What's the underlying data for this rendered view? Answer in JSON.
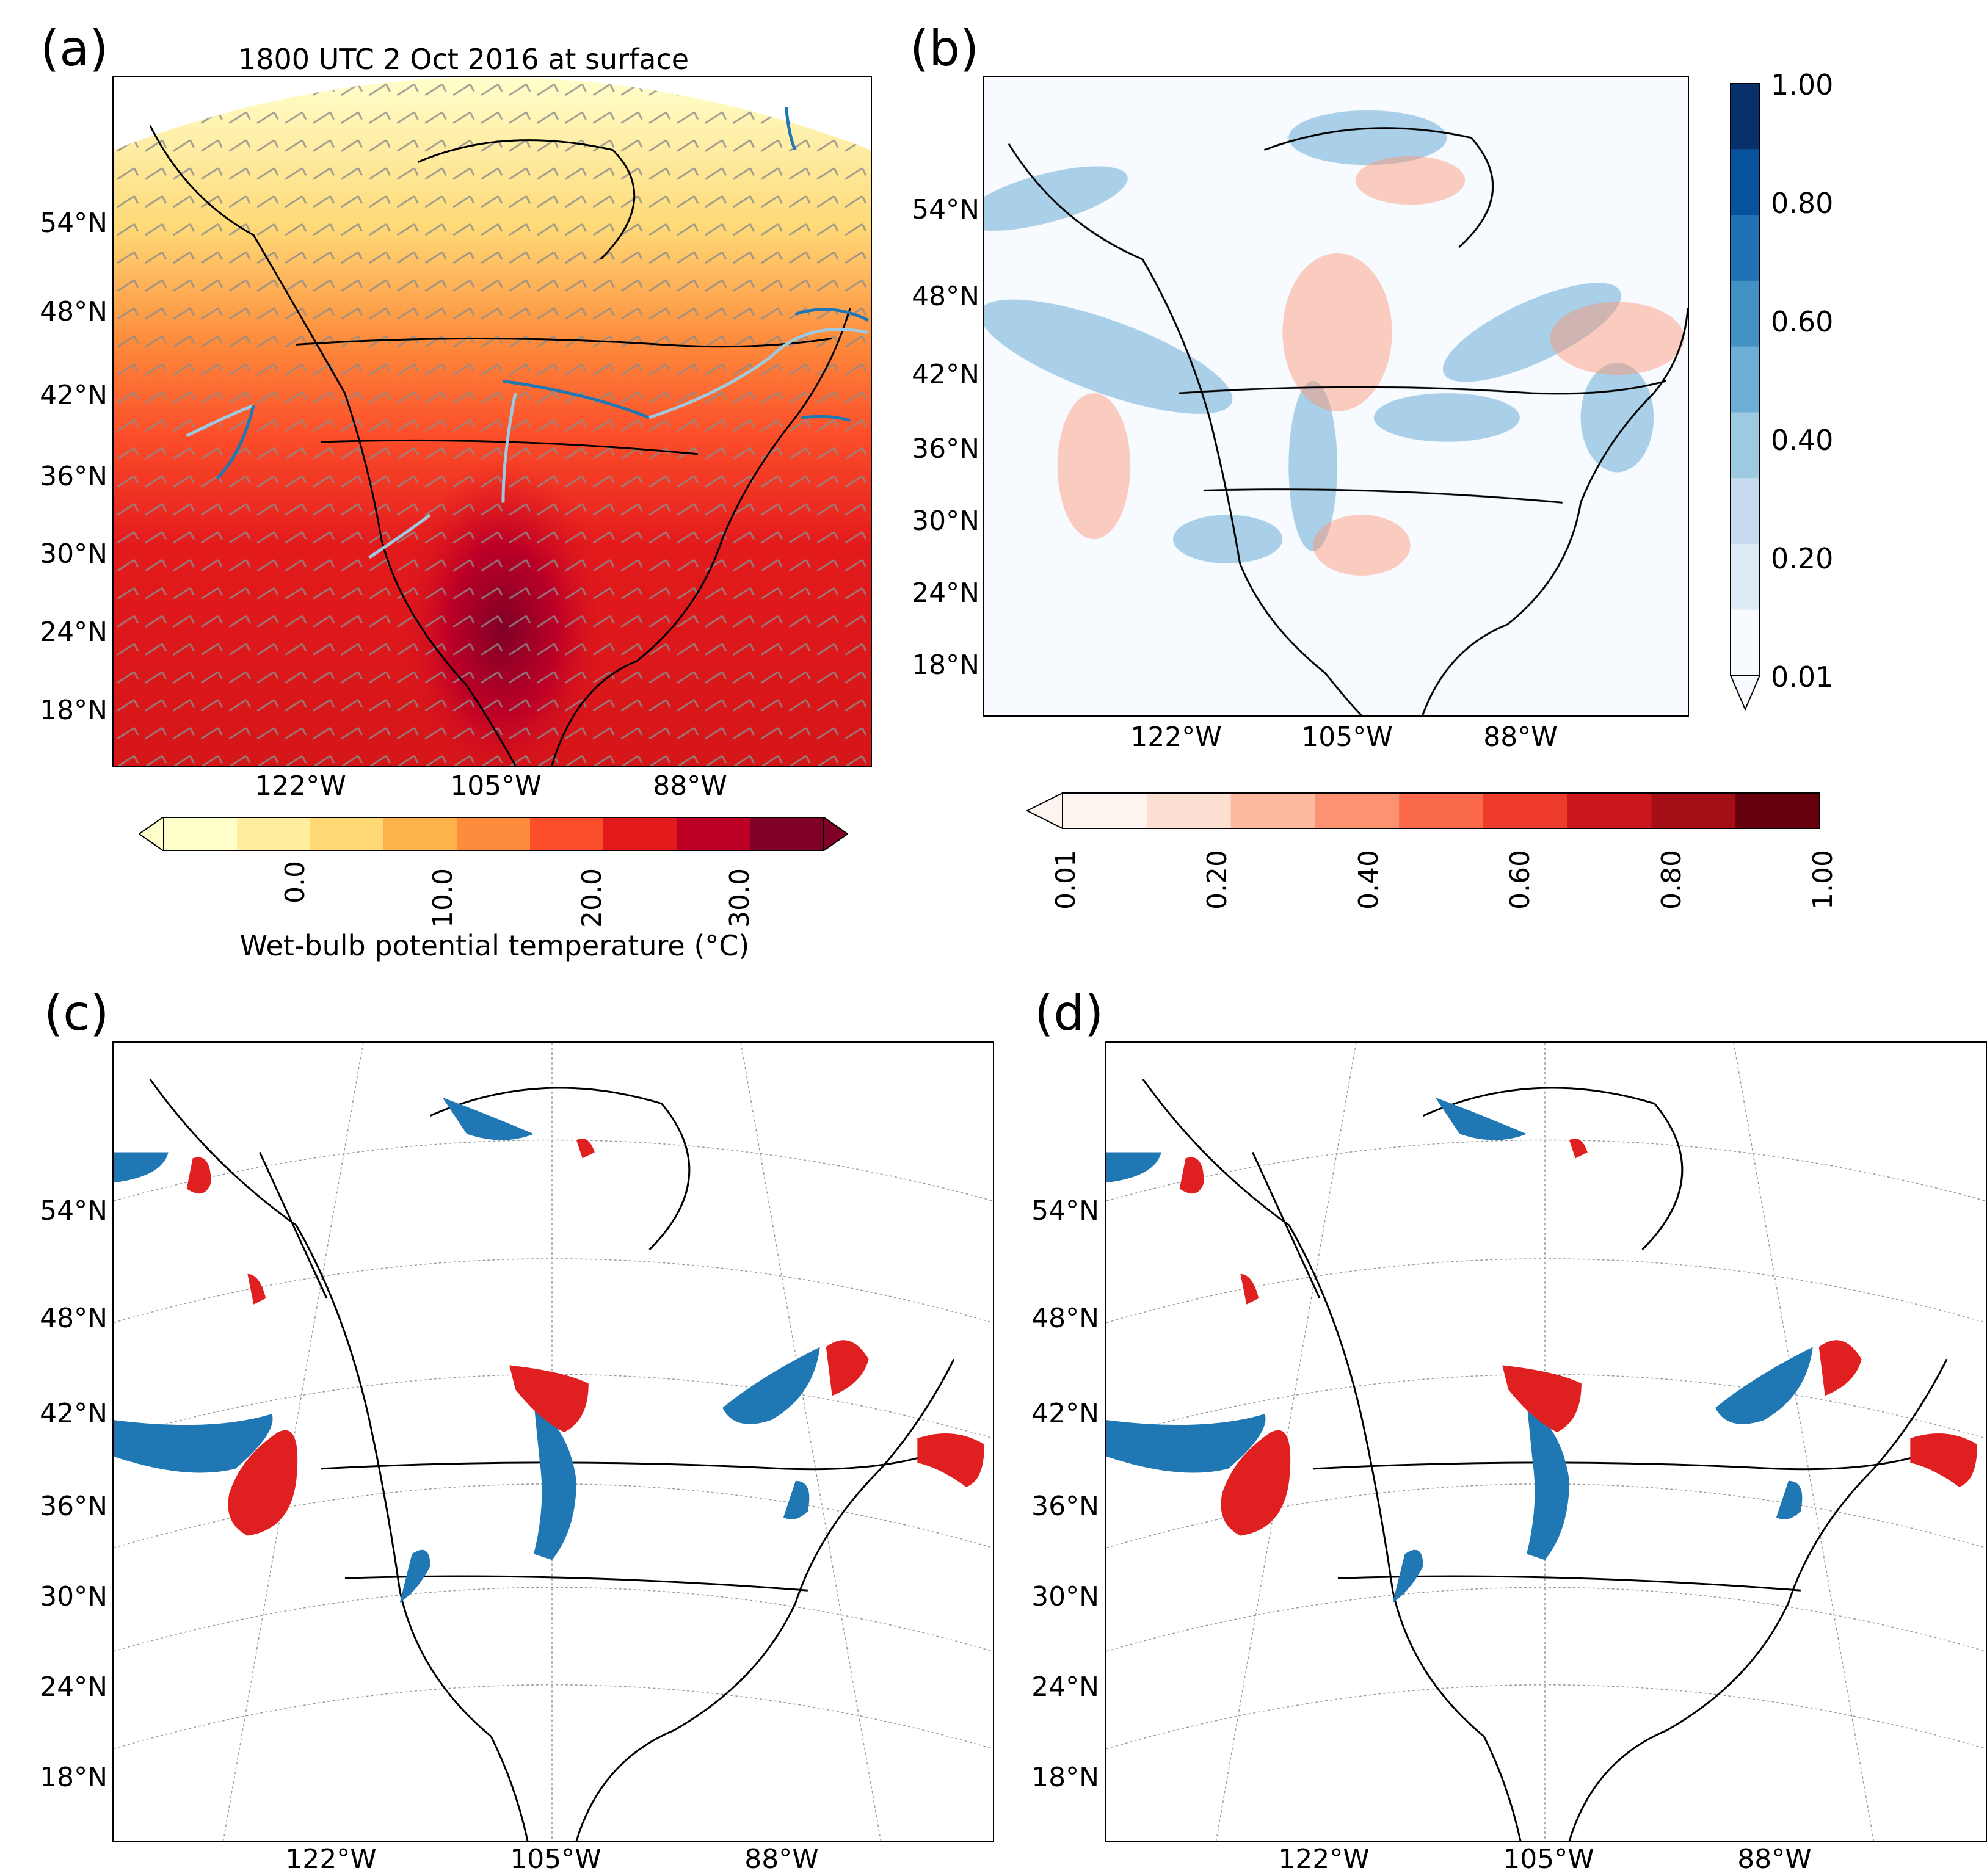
{
  "panels": {
    "a": {
      "letter": "(a)",
      "title": "1800 UTC 2 Oct 2016 at surface"
    },
    "b": {
      "letter": "(b)"
    },
    "c": {
      "letter": "(c)"
    },
    "d": {
      "letter": "(d)"
    }
  },
  "lat_labels": [
    "54°N",
    "48°N",
    "42°N",
    "36°N",
    "30°N",
    "24°N",
    "18°N"
  ],
  "lon_labels": [
    "122°W",
    "105°W",
    "88°W"
  ],
  "colorbar_a": {
    "label": "Wet-bulb potential temperature (°C)",
    "ticks": [
      "0.0",
      "10.0",
      "20.0",
      "30.0"
    ],
    "colors": [
      "#ffffcc",
      "#ffeda0",
      "#fed976",
      "#feb24c",
      "#fd8d3c",
      "#fc4e2a",
      "#e31a1c",
      "#bd0026",
      "#800026"
    ]
  },
  "colorbar_b_blue": {
    "ticks": [
      "1.00",
      "0.80",
      "0.60",
      "0.40",
      "0.20",
      "0.01"
    ],
    "colors": [
      "#f7fbff",
      "#deebf7",
      "#c6dbef",
      "#9ecae1",
      "#6baed6",
      "#4292c6",
      "#2171b5",
      "#08519c",
      "#08306b"
    ]
  },
  "colorbar_b_red": {
    "ticks": [
      "0.01",
      "0.20",
      "0.40",
      "0.60",
      "0.80",
      "1.00"
    ],
    "colors": [
      "#fff5f0",
      "#fee0d2",
      "#fcbba1",
      "#fc9272",
      "#fb6a4a",
      "#ef3b2c",
      "#cb181d",
      "#a50f15",
      "#67000d"
    ]
  },
  "colors": {
    "cold": "#1f77b4",
    "warm": "#e02020",
    "front_light": "#9ecae1",
    "barb": "#8c8c8c"
  }
}
